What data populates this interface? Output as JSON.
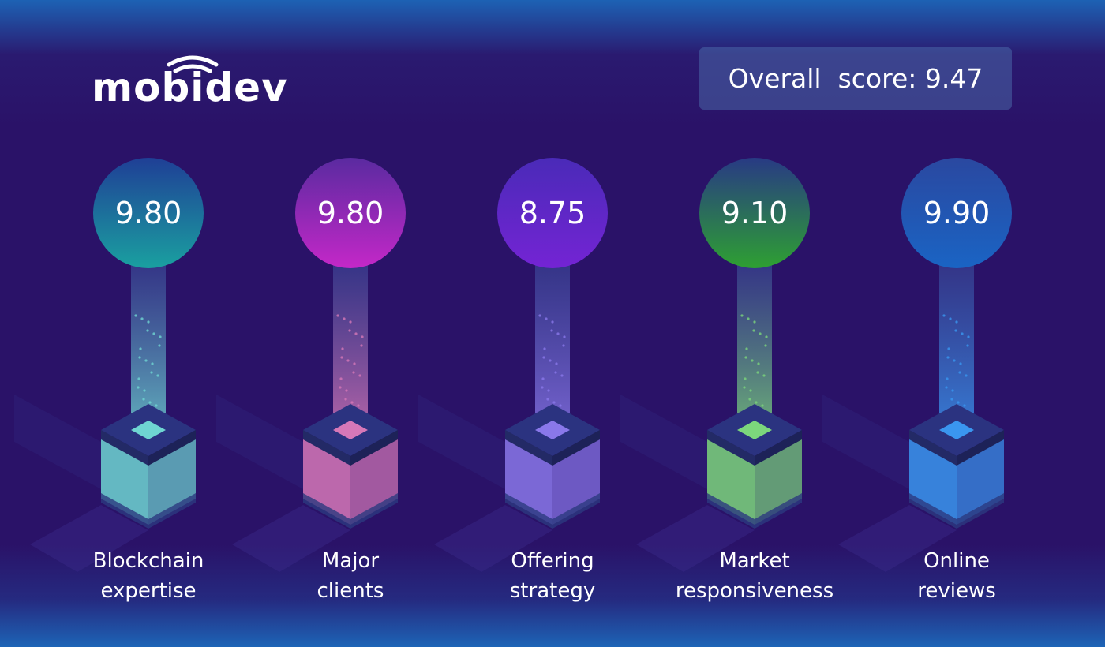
{
  "logo": {
    "text": "mobidev"
  },
  "overall": {
    "label": "Overall  score:",
    "value": "9.47"
  },
  "chart_data": {
    "type": "bar",
    "title": "",
    "categories": [
      "Blockchain expertise",
      "Major clients",
      "Offering strategy",
      "Market responsiveness",
      "Online reviews"
    ],
    "values": [
      9.8,
      9.8,
      8.75,
      9.1,
      9.9
    ]
  },
  "columns": [
    {
      "score": "9.80",
      "label_line1": "Blockchain",
      "label_line2": "expertise",
      "color": "#6fd6d2",
      "circle_top": "#1f3f96",
      "circle_bottom": "#1aa0a0"
    },
    {
      "score": "9.80",
      "label_line1": "Major",
      "label_line2": "clients",
      "color": "#d678b8",
      "circle_top": "#5a2aa0",
      "circle_bottom": "#c428c8"
    },
    {
      "score": "8.75",
      "label_line1": "Offering",
      "label_line2": "strategy",
      "color": "#8a78ea",
      "circle_top": "#4a2ab8",
      "circle_bottom": "#7424d4"
    },
    {
      "score": "9.10",
      "label_line1": "Market",
      "label_line2": "responsiveness",
      "color": "#7cd67c",
      "circle_top": "#283a84",
      "circle_bottom": "#2ea032"
    },
    {
      "score": "9.90",
      "label_line1": "Online",
      "label_line2": "reviews",
      "color": "#3a96f0",
      "circle_top": "#2a48a0",
      "circle_bottom": "#1a64c4"
    }
  ]
}
